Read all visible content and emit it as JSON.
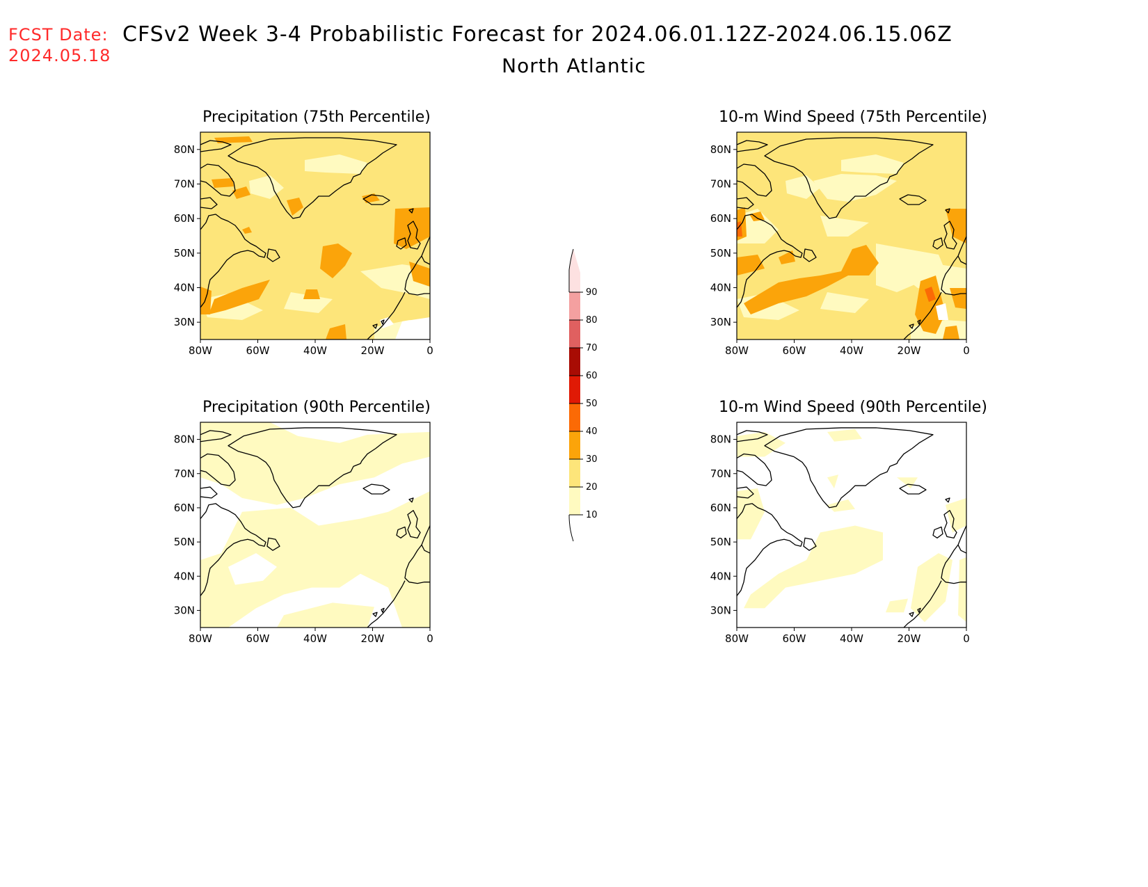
{
  "header": {
    "fcst_label": "FCST Date:",
    "fcst_date": "2024.05.18",
    "title": "CFSv2 Week 3-4 Probabilistic Forecast for 2024.06.01.12Z-2024.06.15.06Z",
    "region": "North Atlantic"
  },
  "colors": {
    "c10": "#fffac0",
    "c20": "#fde57a",
    "c30": "#fba40a",
    "c40": "#fb6a05",
    "c50": "#e01a05",
    "c60": "#a80c04",
    "c70": "#e06060",
    "c80": "#f4a0a0",
    "c90": "#fde1e1"
  },
  "colorbar": {
    "levels": [
      "10",
      "20",
      "30",
      "40",
      "50",
      "60",
      "70",
      "80",
      "90"
    ]
  },
  "panels": [
    {
      "id": "precip75",
      "title": "Precipitation (75th Percentile)",
      "lat_labels": [
        "80N",
        "70N",
        "60N",
        "50N",
        "40N",
        "30N"
      ],
      "lon_labels": [
        "80W",
        "60W",
        "40W",
        "20W",
        "0"
      ]
    },
    {
      "id": "wind75",
      "title": "10-m Wind Speed (75th Percentile)",
      "lat_labels": [
        "80N",
        "70N",
        "60N",
        "50N",
        "40N",
        "30N"
      ],
      "lon_labels": [
        "80W",
        "60W",
        "40W",
        "20W",
        "0"
      ]
    },
    {
      "id": "precip90",
      "title": "Precipitation (90th Percentile)",
      "lat_labels": [
        "80N",
        "70N",
        "60N",
        "50N",
        "40N",
        "30N"
      ],
      "lon_labels": [
        "80W",
        "60W",
        "40W",
        "20W",
        "0"
      ]
    },
    {
      "id": "wind90",
      "title": "10-m Wind Speed (90th Percentile)",
      "lat_labels": [
        "80N",
        "70N",
        "60N",
        "50N",
        "40N",
        "30N"
      ],
      "lon_labels": [
        "80W",
        "60W",
        "40W",
        "20W",
        "0"
      ]
    }
  ]
}
